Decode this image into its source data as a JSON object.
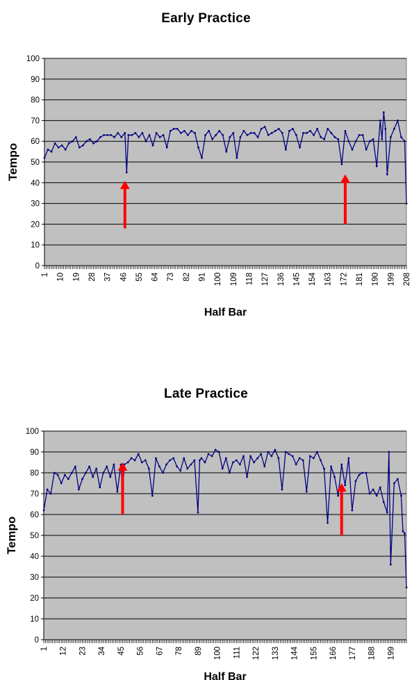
{
  "chart_data": [
    {
      "type": "line",
      "title": "Early Practice",
      "xlabel": "Half Bar",
      "ylabel": "Tempo",
      "ylim": [
        0,
        100
      ],
      "y_ticks": [
        "0",
        "10",
        "20",
        "30",
        "40",
        "50",
        "60",
        "70",
        "80",
        "90",
        "100"
      ],
      "xlim": [
        1,
        208
      ],
      "x_tick_labels": [
        "1",
        "10",
        "19",
        "28",
        "37",
        "46",
        "55",
        "64",
        "73",
        "82",
        "91",
        "100",
        "109",
        "118",
        "127",
        "136",
        "145",
        "154",
        "163",
        "172",
        "181",
        "190",
        "199",
        "208"
      ],
      "x_tick_values": [
        1,
        10,
        19,
        28,
        37,
        46,
        55,
        64,
        73,
        82,
        91,
        100,
        109,
        118,
        127,
        136,
        145,
        154,
        163,
        172,
        181,
        190,
        199,
        208
      ],
      "grid": true,
      "legend": "none",
      "colors": {
        "plot_bg": "#c0c0c0",
        "line": "#000080",
        "arrow": "#ff0000",
        "grid": "#000000"
      },
      "annotations": [
        {
          "type": "arrow",
          "x": 47,
          "y_from": 18,
          "y_to": 41
        },
        {
          "type": "arrow",
          "x": 173,
          "y_from": 20,
          "y_to": 44
        }
      ],
      "series": [
        {
          "x": [
            1,
            3,
            5,
            7,
            9,
            11,
            13,
            15,
            17,
            19,
            21,
            23,
            25,
            27,
            29,
            31,
            33,
            35,
            37,
            39,
            41,
            43,
            45,
            47,
            48,
            49,
            51,
            53,
            55,
            57,
            59,
            61,
            63,
            65,
            67,
            69,
            71,
            73,
            75,
            77,
            79,
            81,
            83,
            85,
            87,
            89,
            91,
            93,
            95,
            97,
            99,
            101,
            103,
            105,
            107,
            109,
            111,
            113,
            115,
            117,
            119,
            121,
            123,
            125,
            127,
            129,
            131,
            133,
            135,
            137,
            139,
            141,
            143,
            145,
            147,
            149,
            151,
            153,
            155,
            157,
            159,
            161,
            163,
            165,
            167,
            169,
            171,
            173,
            175,
            177,
            179,
            181,
            183,
            185,
            187,
            189,
            191,
            193,
            194,
            195,
            196,
            197,
            199,
            201,
            203,
            205,
            207,
            208
          ],
          "y": [
            52,
            56,
            55,
            59,
            57,
            58,
            56,
            59,
            60,
            62,
            57,
            58,
            60,
            61,
            59,
            60,
            62,
            63,
            63,
            63,
            62,
            64,
            62,
            64,
            45,
            63,
            63,
            64,
            62,
            64,
            60,
            63,
            58,
            64,
            62,
            63,
            57,
            65,
            66,
            66,
            64,
            65,
            63,
            65,
            64,
            57,
            52,
            63,
            65,
            61,
            63,
            65,
            63,
            55,
            62,
            64,
            52,
            62,
            65,
            63,
            64,
            64,
            62,
            66,
            67,
            63,
            64,
            65,
            66,
            64,
            56,
            65,
            66,
            63,
            57,
            64,
            64,
            65,
            63,
            66,
            62,
            61,
            66,
            64,
            62,
            61,
            49,
            65,
            60,
            56,
            60,
            63,
            63,
            56,
            60,
            61,
            48,
            70,
            61,
            74,
            66,
            44,
            62,
            66,
            70,
            62,
            60,
            30
          ]
        }
      ]
    },
    {
      "type": "line",
      "title": "Late Practice",
      "xlabel": "Half Bar",
      "ylabel": "Tempo",
      "ylim": [
        0,
        100
      ],
      "y_ticks": [
        "0",
        "10",
        "20",
        "30",
        "40",
        "50",
        "60",
        "70",
        "80",
        "90",
        "100"
      ],
      "xlim": [
        1,
        208
      ],
      "x_tick_labels": [
        "1",
        "12",
        "23",
        "34",
        "45",
        "56",
        "67",
        "78",
        "89",
        "100",
        "111",
        "122",
        "133",
        "144",
        "155",
        "166",
        "177",
        "188",
        "199"
      ],
      "x_tick_values": [
        1,
        12,
        23,
        34,
        45,
        56,
        67,
        78,
        89,
        100,
        111,
        122,
        133,
        144,
        155,
        166,
        177,
        188,
        199
      ],
      "grid": true,
      "legend": "none",
      "colors": {
        "plot_bg": "#c0c0c0",
        "line": "#000080",
        "arrow": "#ff0000",
        "grid": "#000000"
      },
      "annotations": [
        {
          "type": "arrow",
          "x": 46,
          "y_from": 60,
          "y_to": 85
        },
        {
          "type": "arrow",
          "x": 171,
          "y_from": 50,
          "y_to": 75
        }
      ],
      "series": [
        {
          "x": [
            1,
            3,
            5,
            7,
            9,
            11,
            13,
            15,
            17,
            19,
            21,
            23,
            25,
            27,
            29,
            31,
            33,
            35,
            37,
            39,
            41,
            43,
            45,
            46,
            47,
            49,
            51,
            53,
            55,
            57,
            59,
            61,
            63,
            65,
            67,
            69,
            71,
            73,
            75,
            77,
            79,
            81,
            83,
            85,
            87,
            89,
            90,
            91,
            93,
            95,
            97,
            99,
            101,
            103,
            105,
            107,
            109,
            111,
            113,
            115,
            117,
            119,
            121,
            123,
            125,
            127,
            129,
            131,
            133,
            135,
            137,
            139,
            141,
            143,
            145,
            147,
            149,
            151,
            153,
            155,
            157,
            159,
            161,
            163,
            165,
            167,
            169,
            171,
            173,
            175,
            177,
            179,
            181,
            183,
            185,
            187,
            189,
            191,
            193,
            195,
            197,
            198,
            199,
            201,
            203,
            205,
            206,
            207,
            208
          ],
          "y": [
            62,
            72,
            70,
            80,
            79,
            75,
            79,
            77,
            80,
            83,
            72,
            77,
            80,
            83,
            78,
            82,
            73,
            80,
            83,
            78,
            84,
            71,
            84,
            70,
            84,
            85,
            87,
            86,
            89,
            85,
            86,
            82,
            69,
            87,
            83,
            80,
            84,
            86,
            87,
            83,
            81,
            87,
            82,
            84,
            86,
            61,
            86,
            87,
            85,
            89,
            88,
            91,
            90,
            82,
            87,
            80,
            85,
            86,
            84,
            88,
            78,
            88,
            85,
            87,
            89,
            83,
            90,
            88,
            91,
            87,
            72,
            90,
            89,
            88,
            84,
            87,
            86,
            71,
            88,
            87,
            90,
            86,
            82,
            56,
            83,
            78,
            69,
            84,
            74,
            87,
            62,
            76,
            79,
            80,
            80,
            70,
            72,
            69,
            73,
            66,
            61,
            90,
            36,
            75,
            77,
            69,
            52,
            51,
            25
          ]
        }
      ]
    }
  ]
}
